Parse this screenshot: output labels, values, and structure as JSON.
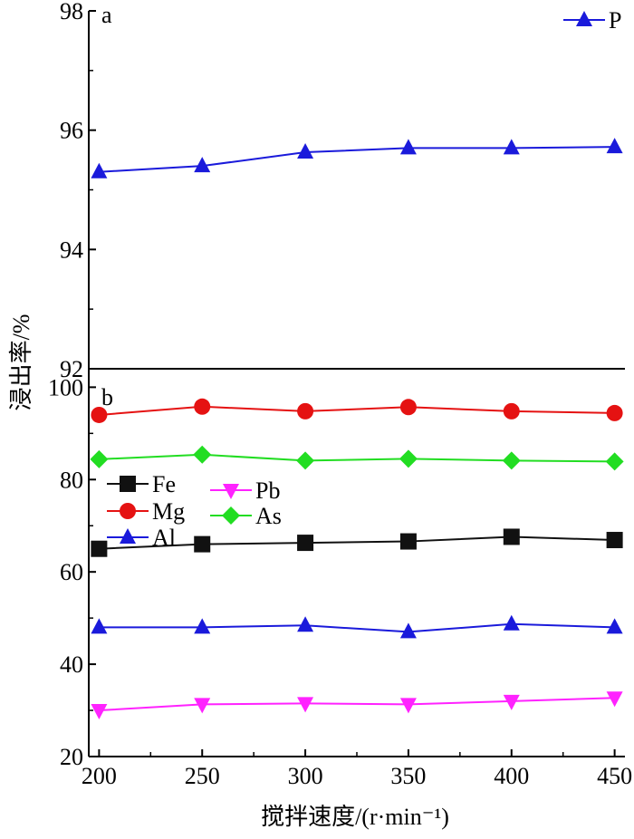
{
  "chart_data": [
    {
      "panel": "a",
      "type": "line",
      "x": [
        200,
        250,
        300,
        350,
        400,
        450
      ],
      "xlim": [
        195,
        455
      ],
      "ylim": [
        92,
        98
      ],
      "yticks": [
        92,
        94,
        96,
        98
      ],
      "series": [
        {
          "name": "P",
          "color": "#1a1adb",
          "marker": "triangle-up",
          "values": [
            95.3,
            95.4,
            95.63,
            95.7,
            95.7,
            95.72
          ]
        }
      ],
      "legend_position": "top-right"
    },
    {
      "panel": "b",
      "type": "line",
      "x": [
        200,
        250,
        300,
        350,
        400,
        450
      ],
      "xticks": [
        "200",
        "250",
        "300",
        "350",
        "400",
        "450"
      ],
      "xlim": [
        195,
        455
      ],
      "ylim": [
        20,
        104
      ],
      "yticks": [
        20,
        40,
        60,
        80,
        100
      ],
      "series": [
        {
          "name": "Fe",
          "color": "#111111",
          "marker": "square",
          "values": [
            65,
            66,
            66.3,
            66.6,
            67.6,
            66.9
          ]
        },
        {
          "name": "Mg",
          "color": "#e51212",
          "marker": "circle",
          "values": [
            94,
            95.8,
            94.8,
            95.7,
            94.8,
            94.4
          ]
        },
        {
          "name": "Al",
          "color": "#1a1adb",
          "marker": "triangle-up",
          "values": [
            48,
            48,
            48.4,
            47,
            48.7,
            48
          ]
        },
        {
          "name": "Pb",
          "color": "#ff22ff",
          "marker": "triangle-down",
          "values": [
            30,
            31.3,
            31.5,
            31.3,
            32,
            32.7
          ]
        },
        {
          "name": "As",
          "color": "#22dd22",
          "marker": "diamond",
          "values": [
            84.4,
            85.4,
            84.1,
            84.5,
            84.1,
            83.9
          ]
        }
      ],
      "legend_position": "middle-left"
    }
  ],
  "xlabel": "搅拌速度/(r·min⁻¹)",
  "ylabel": "浸出率/%"
}
